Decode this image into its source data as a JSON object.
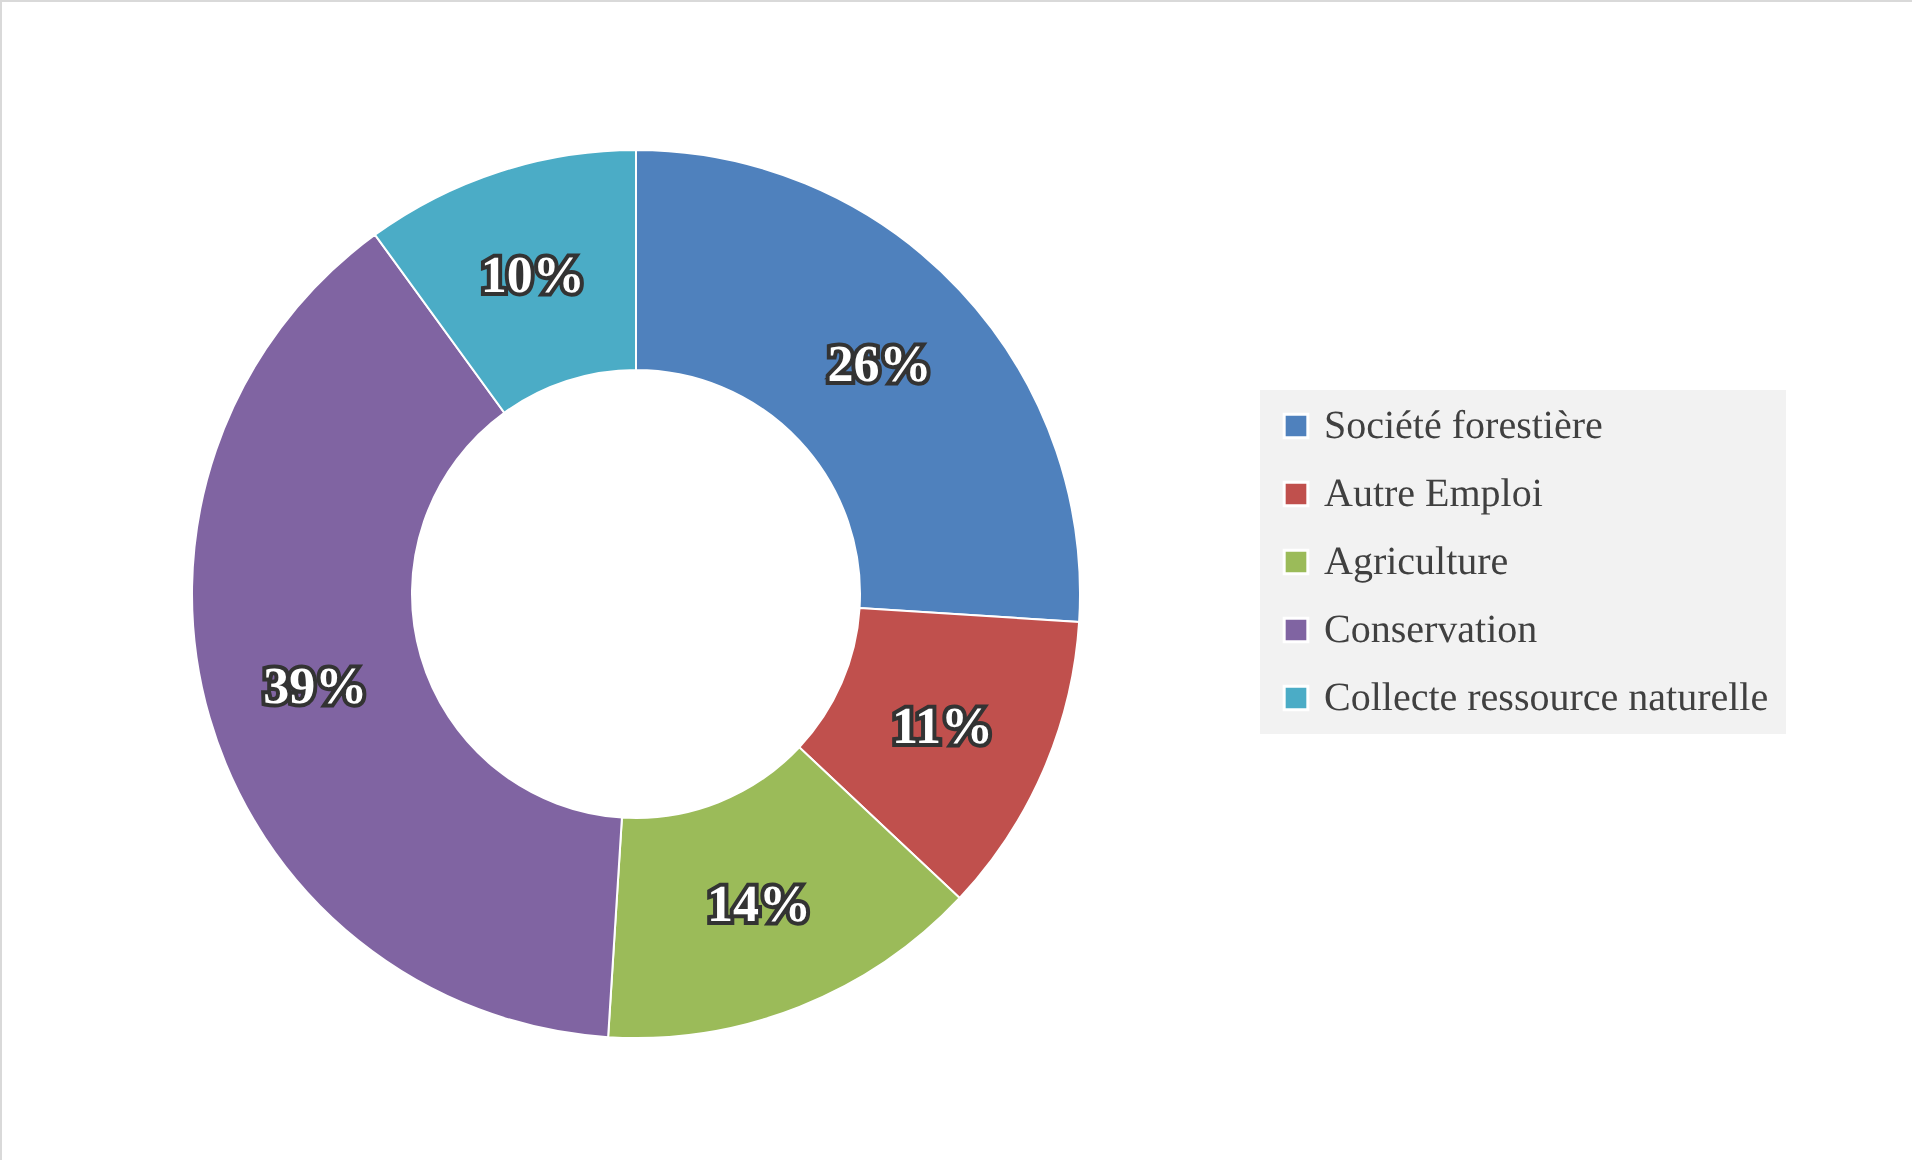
{
  "chart_data": {
    "type": "donut",
    "categories": [
      "Société forestière",
      "Autre Emploi",
      "Agriculture",
      "Conservation",
      "Collecte ressource naturelle"
    ],
    "values": [
      26,
      11,
      14,
      39,
      10
    ],
    "colors": [
      "#4f81bd",
      "#c0504d",
      "#9bbb59",
      "#8064a2",
      "#4bacc6"
    ],
    "value_labels": [
      "26%",
      "11%",
      "14%",
      "39%",
      "10%"
    ],
    "legend": "right"
  }
}
